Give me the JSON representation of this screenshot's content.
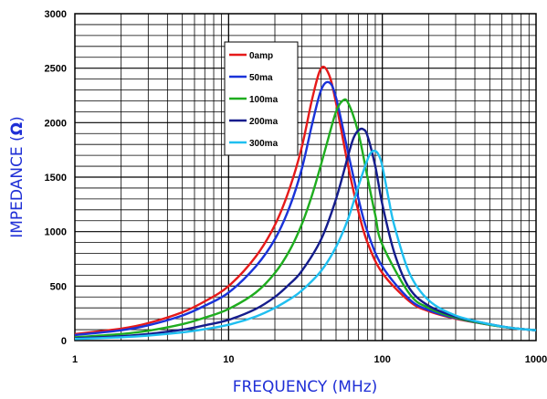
{
  "chart_data": {
    "type": "line",
    "title": "",
    "xlabel": "FREQUENCY (MHz)",
    "ylabel_text": "IMPEDANCE (",
    "ylabel_unit": "Ω",
    "ylabel_close": ")",
    "xscale": "log",
    "xlim": [
      1,
      1000
    ],
    "ylim": [
      0,
      3000
    ],
    "x_tick_labels": [
      "1",
      "10",
      "100",
      "1000"
    ],
    "y_tick_labels": [
      "0",
      "500",
      "1000",
      "1500",
      "2000",
      "2500",
      "3000"
    ],
    "grid": true,
    "legend_position": "top-left inside plot",
    "axis_title_color": "#1f2fd6",
    "series": [
      {
        "name": "0amp",
        "color": "#e61a1a",
        "x": [
          1,
          2,
          3,
          5,
          7,
          10,
          15,
          20,
          25,
          30,
          35,
          40,
          45,
          50,
          60,
          70,
          80,
          100,
          150,
          200,
          300,
          500,
          700,
          1000
        ],
        "y": [
          60,
          110,
          160,
          260,
          360,
          500,
          770,
          1060,
          1400,
          1780,
          2220,
          2500,
          2440,
          2180,
          1600,
          1180,
          900,
          620,
          360,
          270,
          200,
          145,
          115,
          95
        ]
      },
      {
        "name": "50ma",
        "color": "#1a33d9",
        "x": [
          1,
          2,
          3,
          5,
          7,
          10,
          15,
          20,
          25,
          30,
          35,
          40,
          45,
          50,
          60,
          70,
          80,
          100,
          150,
          200,
          300,
          500,
          700,
          1000
        ],
        "y": [
          50,
          95,
          140,
          230,
          320,
          440,
          680,
          930,
          1230,
          1580,
          1990,
          2300,
          2370,
          2230,
          1720,
          1300,
          1000,
          680,
          380,
          280,
          205,
          145,
          115,
          95
        ]
      },
      {
        "name": "100ma",
        "color": "#1fad1f",
        "x": [
          1,
          2,
          3,
          5,
          7,
          10,
          15,
          20,
          25,
          30,
          35,
          40,
          45,
          50,
          55,
          60,
          70,
          80,
          90,
          100,
          150,
          200,
          300,
          500,
          700,
          1000
        ],
        "y": [
          30,
          60,
          90,
          150,
          210,
          290,
          440,
          620,
          830,
          1070,
          1340,
          1620,
          1880,
          2100,
          2200,
          2180,
          1900,
          1500,
          1150,
          880,
          430,
          300,
          210,
          145,
          115,
          95
        ]
      },
      {
        "name": "200ma",
        "color": "#141c8c",
        "x": [
          1,
          2,
          3,
          5,
          7,
          10,
          15,
          20,
          25,
          30,
          40,
          50,
          60,
          65,
          70,
          75,
          80,
          90,
          100,
          120,
          150,
          200,
          300,
          500,
          700,
          1000
        ],
        "y": [
          20,
          40,
          60,
          100,
          140,
          190,
          290,
          400,
          520,
          640,
          930,
          1300,
          1700,
          1860,
          1930,
          1940,
          1880,
          1600,
          1250,
          800,
          480,
          320,
          220,
          150,
          115,
          95
        ]
      },
      {
        "name": "300ma",
        "color": "#1fbff0",
        "x": [
          1,
          2,
          3,
          5,
          7,
          10,
          15,
          20,
          25,
          30,
          40,
          50,
          60,
          70,
          80,
          85,
          90,
          95,
          100,
          110,
          120,
          150,
          200,
          300,
          500,
          700,
          1000
        ],
        "y": [
          15,
          30,
          45,
          75,
          105,
          145,
          220,
          300,
          380,
          460,
          640,
          860,
          1120,
          1420,
          1660,
          1730,
          1740,
          1700,
          1600,
          1300,
          1050,
          620,
          370,
          230,
          150,
          115,
          95
        ]
      }
    ]
  }
}
